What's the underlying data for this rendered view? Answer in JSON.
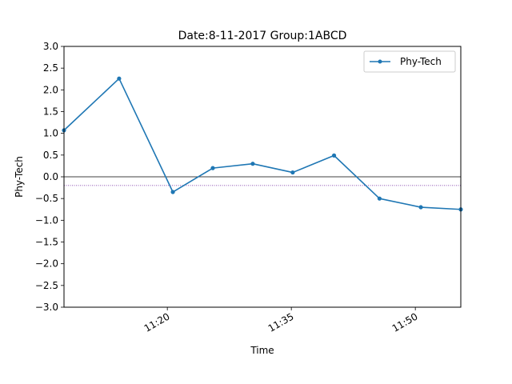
{
  "chart_data": {
    "type": "line",
    "title": "Date:8-11-2017 Group:1ABCD",
    "xlabel": "Time",
    "ylabel": "Phy-Tech",
    "x_range": [
      "11:07:30",
      "11:55:30"
    ],
    "ylim": [
      -3.0,
      3.0
    ],
    "y_ticks": [
      "3.0",
      "2.5",
      "2.0",
      "1.5",
      "1.0",
      "0.5",
      "0.0",
      "−0.5",
      "−1.0",
      "−1.5",
      "−2.0",
      "−2.5",
      "−3.0"
    ],
    "y_tick_values": [
      3.0,
      2.5,
      2.0,
      1.5,
      1.0,
      0.5,
      0.0,
      -0.5,
      -1.0,
      -1.5,
      -2.0,
      -2.5,
      -3.0
    ],
    "x_ticks": [
      "11:20",
      "11:35",
      "11:50"
    ],
    "x_tick_values": [
      "11:20",
      "11:35",
      "11:50"
    ],
    "legend": {
      "position": "top-right",
      "entries": [
        "Phy-Tech"
      ]
    },
    "grid": false,
    "reference_lines": [
      {
        "y": 0.0,
        "color": "#000000",
        "style": "solid"
      },
      {
        "y": -0.2,
        "color": "#6a1b9a",
        "style": "dotted"
      }
    ],
    "series": [
      {
        "name": "Phy-Tech",
        "color": "#1f77b4",
        "x": [
          "11:07:30",
          "11:14:10",
          "11:20:40",
          "11:25:30",
          "11:30:20",
          "11:35:10",
          "11:40:10",
          "11:45:40",
          "11:50:40",
          "11:55:30"
        ],
        "y": [
          1.07,
          2.26,
          -0.35,
          0.2,
          0.3,
          0.1,
          0.49,
          -0.5,
          -0.7,
          -0.75
        ]
      }
    ]
  }
}
